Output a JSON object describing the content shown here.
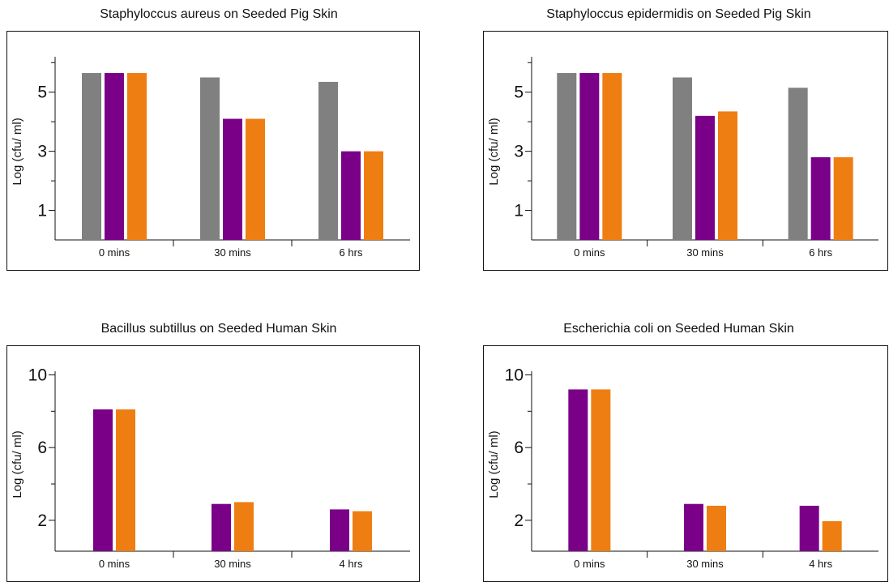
{
  "colors": {
    "gray": "#808080",
    "purple": "#7a0088",
    "orange": "#ee7e12"
  },
  "chart_data": [
    {
      "type": "bar",
      "title": "Staphyloccus aureus on Seeded Pig Skin",
      "ylabel": "Log (cfu/ ml)",
      "xlabel": "",
      "categories": [
        "0 mins",
        "30 mins",
        "6 hrs"
      ],
      "ylim": [
        0,
        6.2
      ],
      "yticks": [
        1,
        3,
        5
      ],
      "yminor": [
        2,
        4,
        6
      ],
      "series": [
        {
          "color": "gray",
          "values": [
            5.65,
            5.5,
            5.35
          ]
        },
        {
          "color": "purple",
          "values": [
            5.65,
            4.1,
            3.0
          ]
        },
        {
          "color": "orange",
          "values": [
            5.65,
            4.1,
            3.0
          ]
        }
      ],
      "legend": "none",
      "grid": false
    },
    {
      "type": "bar",
      "title": "Staphyloccus epidermidis on Seeded Pig Skin",
      "ylabel": "Log (cfu/ ml)",
      "xlabel": "",
      "categories": [
        "0 mins",
        "30 mins",
        "6 hrs"
      ],
      "ylim": [
        0,
        6.2
      ],
      "yticks": [
        1,
        3,
        5
      ],
      "yminor": [
        2,
        4,
        6
      ],
      "series": [
        {
          "color": "gray",
          "values": [
            5.65,
            5.5,
            5.15
          ]
        },
        {
          "color": "purple",
          "values": [
            5.65,
            4.2,
            2.8
          ]
        },
        {
          "color": "orange",
          "values": [
            5.65,
            4.35,
            2.8
          ]
        }
      ],
      "legend": "none",
      "grid": false
    },
    {
      "type": "bar",
      "title": "Bacillus subtillus on Seeded Human Skin",
      "ylabel": "Log (cfu/ ml)",
      "xlabel": "",
      "categories": [
        "0 mins",
        "30 mins",
        "4 hrs"
      ],
      "ylim": [
        0.3,
        10.2
      ],
      "yticks": [
        2,
        6,
        10
      ],
      "yminor": [
        4,
        8
      ],
      "series": [
        {
          "color": "purple",
          "values": [
            8.1,
            2.9,
            2.6
          ]
        },
        {
          "color": "orange",
          "values": [
            8.1,
            3.0,
            2.5
          ]
        }
      ],
      "legend": "none",
      "grid": false
    },
    {
      "type": "bar",
      "title": "Escherichia coli on Seeded Human Skin",
      "ylabel": "Log (cfu/ ml)",
      "xlabel": "",
      "categories": [
        "0 mins",
        "30 mins",
        "4 hrs"
      ],
      "ylim": [
        0.3,
        10.2
      ],
      "yticks": [
        2,
        6,
        10
      ],
      "yminor": [
        4,
        8
      ],
      "series": [
        {
          "color": "purple",
          "values": [
            9.2,
            2.9,
            2.8
          ]
        },
        {
          "color": "orange",
          "values": [
            9.2,
            2.8,
            1.95
          ]
        }
      ],
      "legend": "none",
      "grid": false
    }
  ]
}
